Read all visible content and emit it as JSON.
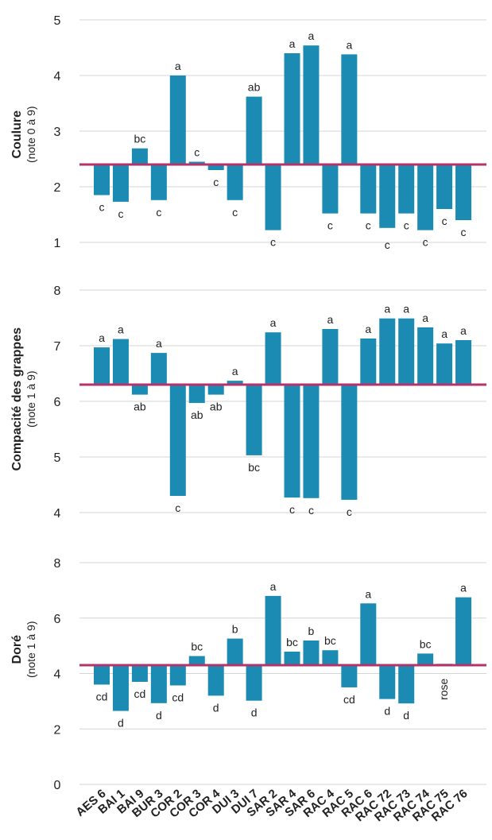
{
  "chart_data": [
    {
      "type": "bar",
      "title": "",
      "ylabel": "Coulure",
      "ylabel_sub": "(note 0 à 9)",
      "ylim": [
        1,
        5
      ],
      "yticks": [
        1,
        2,
        3,
        4,
        5
      ],
      "baseline": 2.4,
      "categories": [
        "AES 6",
        "BAI 1",
        "BAI 9",
        "BUR 3",
        "COR 2",
        "COR 3",
        "COR 4",
        "DUI 3",
        "DUI 7",
        "SAR 2",
        "SAR 4",
        "SAR 6",
        "RAC 4",
        "RAC 5",
        "RAC 6",
        "RAC 72",
        "RAC 73",
        "RAC 74",
        "RAC 75",
        "RAC 76"
      ],
      "values": [
        1.85,
        1.73,
        2.69,
        1.76,
        4.0,
        2.45,
        2.3,
        1.76,
        3.62,
        1.22,
        4.4,
        4.54,
        1.52,
        4.38,
        1.52,
        1.26,
        1.52,
        1.22,
        1.6,
        1.4
      ],
      "labels": [
        "c",
        "c",
        "bc",
        "c",
        "a",
        "c",
        "c",
        "c",
        "ab",
        "c",
        "a",
        "a",
        "c",
        "a",
        "c",
        "c",
        "c",
        "c",
        "c",
        "c"
      ],
      "grid": true
    },
    {
      "type": "bar",
      "title": "",
      "ylabel": "Compacité des grappes",
      "ylabel_sub": "(note 1 à 9)",
      "ylim": [
        4,
        8
      ],
      "yticks": [
        4,
        5,
        6,
        7,
        8
      ],
      "baseline": 6.3,
      "categories": [
        "AES 6",
        "BAI 1",
        "BAI 9",
        "BUR 3",
        "COR 2",
        "COR 3",
        "COR 4",
        "DUI 3",
        "DUI 7",
        "SAR 2",
        "SAR 4",
        "SAR 6",
        "RAC 4",
        "RAC 5",
        "RAC 6",
        "RAC 72",
        "RAC 73",
        "RAC 74",
        "RAC 75",
        "RAC 76"
      ],
      "values": [
        6.97,
        7.12,
        6.12,
        6.87,
        4.3,
        5.97,
        6.12,
        6.37,
        5.03,
        7.24,
        4.27,
        4.26,
        7.3,
        4.23,
        7.13,
        7.49,
        7.49,
        7.33,
        7.04,
        7.1
      ],
      "labels": [
        "a",
        "a",
        "ab",
        "a",
        "c",
        "ab",
        "ab",
        "a",
        "bc",
        "a",
        "c",
        "c",
        "a",
        "c",
        "a",
        "a",
        "a",
        "a",
        "a",
        "a"
      ],
      "grid": true
    },
    {
      "type": "bar",
      "title": "",
      "ylabel": "Doré",
      "ylabel_sub": "(note 1 à 9)",
      "ylim": [
        0,
        8
      ],
      "yticks": [
        0,
        2,
        4,
        6,
        8
      ],
      "baseline": 4.3,
      "categories": [
        "AES 6",
        "BAI 1",
        "BAI 9",
        "BUR 3",
        "COR 2",
        "COR 3",
        "COR 4",
        "DUI 3",
        "DUI 7",
        "SAR 2",
        "SAR 4",
        "SAR 6",
        "RAC 4",
        "RAC 5",
        "RAC 6",
        "RAC 72",
        "RAC 73",
        "RAC 74",
        "RAC 75",
        "RAC 76"
      ],
      "values": [
        3.6,
        2.65,
        3.7,
        2.93,
        3.57,
        4.63,
        3.2,
        5.26,
        3.02,
        6.8,
        4.79,
        5.19,
        4.84,
        3.5,
        6.53,
        3.08,
        2.92,
        4.72,
        4.35,
        6.75
      ],
      "labels": [
        "cd",
        "d",
        "cd",
        "d",
        "cd",
        "bc",
        "d",
        "b",
        "d",
        "a",
        "bc",
        "b",
        "bc",
        "cd",
        "a",
        "d",
        "d",
        "bc",
        "rose",
        "a"
      ],
      "grid": true
    }
  ],
  "colors": {
    "bar": "#1b8bb4",
    "baseline": "#b5336a",
    "grid": "#d4d4d4"
  }
}
